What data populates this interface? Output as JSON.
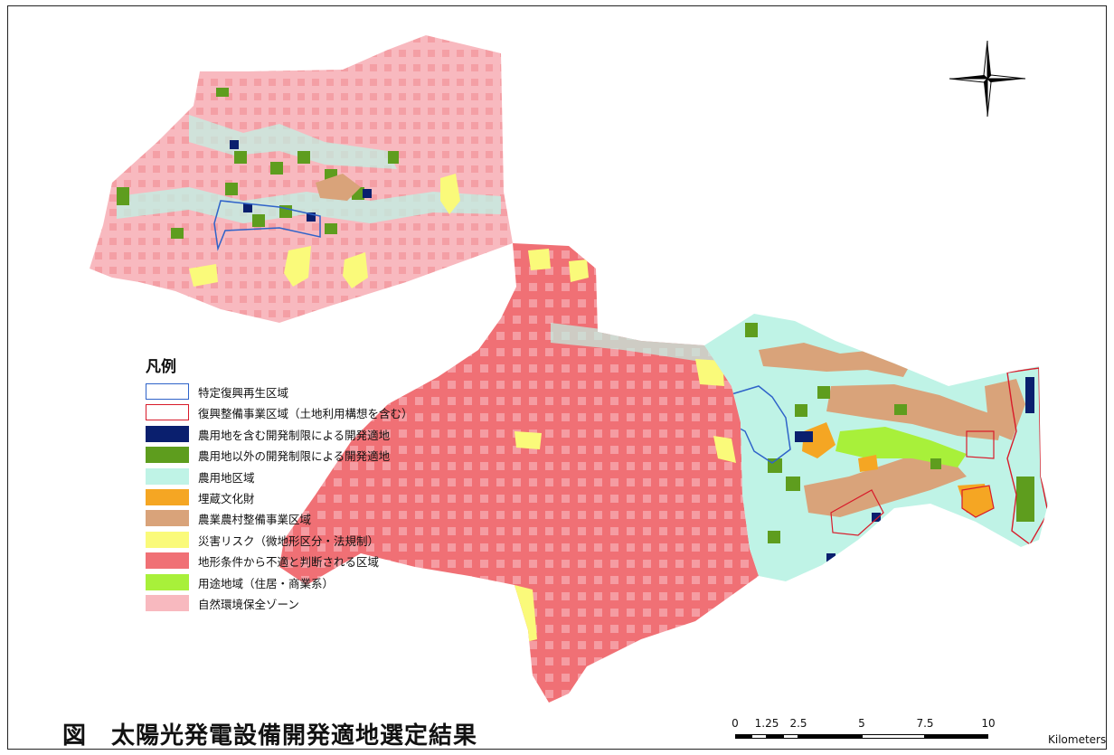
{
  "legend": {
    "title": "凡例",
    "items": [
      {
        "label": "特定復興再生区域",
        "fill": "#ffffff",
        "stroke": "#2f63c9",
        "kind": "outline"
      },
      {
        "label": "復興整備事業区域（土地利用構想を含む）",
        "fill": "#ffffff",
        "stroke": "#d81b2a",
        "kind": "outline"
      },
      {
        "label": "農用地を含む開発制限による開発適地",
        "fill": "#0a1f6e",
        "stroke": "",
        "kind": "fill"
      },
      {
        "label": "農用地以外の開発制限による開発適地",
        "fill": "#5e9d1e",
        "stroke": "",
        "kind": "fill"
      },
      {
        "label": "農用地区域",
        "fill": "#bff3e6",
        "stroke": "",
        "kind": "fill"
      },
      {
        "label": "埋蔵文化財",
        "fill": "#f5a623",
        "stroke": "",
        "kind": "fill"
      },
      {
        "label": "農業農村整備事業区域",
        "fill": "#d9a37a",
        "stroke": "",
        "kind": "fill"
      },
      {
        "label": "災害リスク（微地形区分・法規制）",
        "fill": "#fafa7a",
        "stroke": "",
        "kind": "fill"
      },
      {
        "label": "地形条件から不適と判断される区域",
        "fill": "#f07075",
        "stroke": "",
        "kind": "fill"
      },
      {
        "label": "用途地域（住居・商業系）",
        "fill": "#a8f03a",
        "stroke": "",
        "kind": "fill"
      },
      {
        "label": "自然環境保全ゾーン",
        "fill": "#f8b9bf",
        "stroke": "",
        "kind": "fill"
      }
    ]
  },
  "figure_title": "図　太陽光発電設備開発適地選定結果",
  "scale_bar": {
    "ticks": [
      "0",
      "1.25",
      "2.5",
      "5",
      "7.5",
      "10"
    ],
    "unit": "Kilometers"
  },
  "north_arrow": "compass-rose-icon"
}
